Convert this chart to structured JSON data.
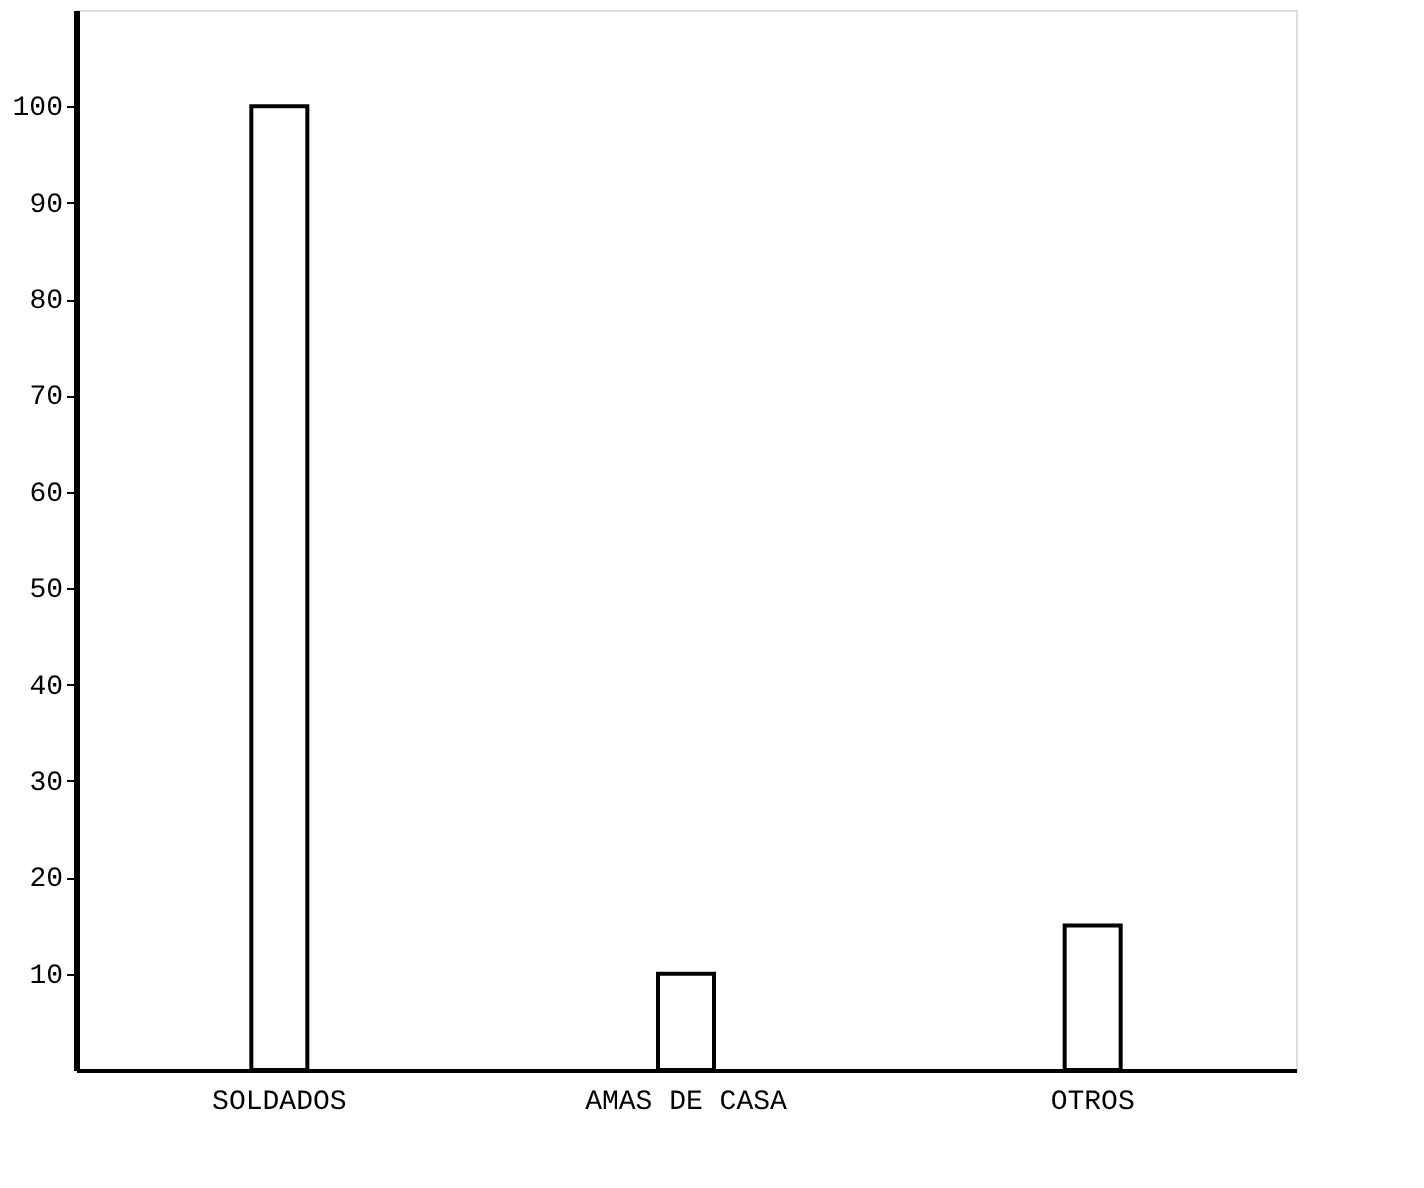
{
  "chart_data": {
    "type": "bar",
    "categories": [
      "SOLDADOS",
      "AMAS DE CASA",
      "OTROS"
    ],
    "values": [
      100,
      10,
      15
    ],
    "color": "#ffffff",
    "ylim": [
      0,
      110
    ],
    "yticks": [
      10,
      20,
      30,
      40,
      50,
      60,
      70,
      80,
      90,
      100
    ],
    "grid": false
  }
}
